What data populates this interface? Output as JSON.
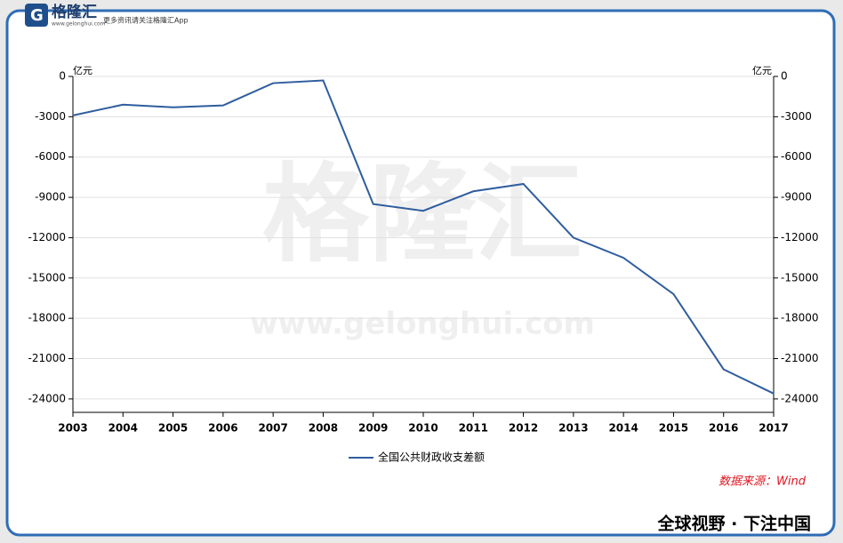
{
  "brand": {
    "name": "格隆汇",
    "site": "www.gelonghui.com",
    "slogan": "更多资讯请关注格隆汇App"
  },
  "chart_data": {
    "type": "line",
    "x": [
      "2003",
      "2004",
      "2005",
      "2006",
      "2007",
      "2008",
      "2009",
      "2010",
      "2011",
      "2012",
      "2013",
      "2014",
      "2015",
      "2016",
      "2017"
    ],
    "series": [
      {
        "name": "全国公共财政收支差额",
        "color": "#2f5d9e",
        "values": [
          -2900,
          -2100,
          -2300,
          -2160,
          -500,
          -300,
          -9500,
          -10000,
          -8550,
          -8000,
          -12000,
          -13500,
          -16200,
          -21800,
          -23600
        ]
      }
    ],
    "ylim": [
      -25000,
      0
    ],
    "yticks": [
      0,
      -3000,
      -6000,
      -9000,
      -12000,
      -15000,
      -18000,
      -21000,
      -24000
    ],
    "y_unit": "亿元",
    "y2_unit": "亿元",
    "grid": true,
    "source": "数据来源：Wind"
  },
  "footer": "全球视野 · 下注中国"
}
